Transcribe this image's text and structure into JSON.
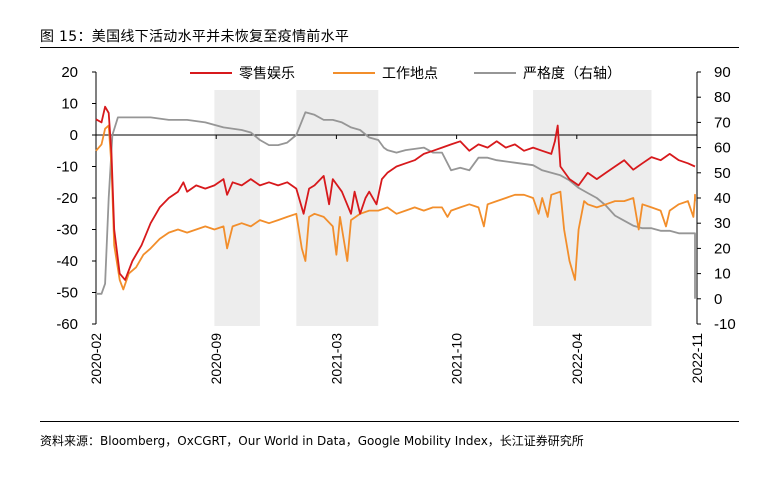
{
  "header": {
    "title": "图 15：美国线下活动水平并未恢复至疫情前水平"
  },
  "footer": {
    "source": "资料来源：Bloomberg，OxCGRT，Our World in Data，Google Mobility Index，长江证券研究所"
  },
  "chart_data": {
    "type": "line",
    "title": "图 15：美国线下活动水平并未恢复至疫情前水平",
    "y_left": {
      "ylim": [
        -60,
        20
      ],
      "ticks": [
        "20",
        "10",
        "0",
        "-10",
        "-20",
        "-30",
        "-40",
        "-50",
        "-60"
      ]
    },
    "y_right": {
      "ylim": [
        -10,
        90
      ],
      "ticks": [
        "90",
        "80",
        "70",
        "60",
        "50",
        "40",
        "30",
        "20",
        "10",
        "0",
        "-10"
      ]
    },
    "x_ticks": [
      "2020-02",
      "2020-09",
      "2021-03",
      "2021-10",
      "2022-04",
      "2022-11"
    ],
    "x_range": [
      0,
      33
    ],
    "shaded_periods": [
      [
        6.5,
        9.0
      ],
      [
        11.0,
        15.5
      ],
      [
        24.0,
        30.5
      ]
    ],
    "series": [
      {
        "name": "零售娱乐",
        "axis": "left",
        "color": "#d7191c",
        "points": [
          [
            0,
            5
          ],
          [
            0.3,
            4
          ],
          [
            0.5,
            9
          ],
          [
            0.7,
            7
          ],
          [
            0.85,
            -6
          ],
          [
            1.0,
            -30
          ],
          [
            1.3,
            -44
          ],
          [
            1.6,
            -46
          ],
          [
            2.0,
            -40
          ],
          [
            2.5,
            -35
          ],
          [
            3.0,
            -28
          ],
          [
            3.5,
            -23
          ],
          [
            4.0,
            -20
          ],
          [
            4.5,
            -18
          ],
          [
            4.8,
            -15
          ],
          [
            5.0,
            -18
          ],
          [
            5.5,
            -16
          ],
          [
            6.0,
            -17
          ],
          [
            6.5,
            -16
          ],
          [
            7.0,
            -14
          ],
          [
            7.2,
            -19
          ],
          [
            7.5,
            -15
          ],
          [
            8.0,
            -16
          ],
          [
            8.5,
            -14
          ],
          [
            9.0,
            -16
          ],
          [
            9.5,
            -15
          ],
          [
            10.0,
            -16
          ],
          [
            10.5,
            -15
          ],
          [
            11.0,
            -17
          ],
          [
            11.4,
            -25
          ],
          [
            11.7,
            -17
          ],
          [
            12.0,
            -16
          ],
          [
            12.5,
            -13
          ],
          [
            12.8,
            -22
          ],
          [
            13.0,
            -14
          ],
          [
            13.5,
            -18
          ],
          [
            14.0,
            -25
          ],
          [
            14.2,
            -18
          ],
          [
            14.5,
            -25
          ],
          [
            14.8,
            -20
          ],
          [
            15.0,
            -18
          ],
          [
            15.4,
            -22
          ],
          [
            15.7,
            -14
          ],
          [
            16.0,
            -12
          ],
          [
            16.5,
            -10
          ],
          [
            17.0,
            -9
          ],
          [
            17.5,
            -8
          ],
          [
            18.0,
            -6
          ],
          [
            18.5,
            -5
          ],
          [
            19.0,
            -4
          ],
          [
            19.5,
            -3
          ],
          [
            20.0,
            -2
          ],
          [
            20.5,
            -5
          ],
          [
            21.0,
            -3
          ],
          [
            21.5,
            -4
          ],
          [
            22.0,
            -2
          ],
          [
            22.5,
            -4
          ],
          [
            23.0,
            -3
          ],
          [
            23.5,
            -5
          ],
          [
            24.0,
            -4
          ],
          [
            24.5,
            -5
          ],
          [
            25.0,
            -6
          ],
          [
            25.2,
            -2
          ],
          [
            25.35,
            3
          ],
          [
            25.5,
            -10
          ],
          [
            26.0,
            -14
          ],
          [
            26.5,
            -16
          ],
          [
            27.0,
            -12
          ],
          [
            27.5,
            -14
          ],
          [
            28.0,
            -12
          ],
          [
            28.5,
            -10
          ],
          [
            29.0,
            -8
          ],
          [
            29.5,
            -11
          ],
          [
            30.0,
            -9
          ],
          [
            30.5,
            -7
          ],
          [
            31.0,
            -8
          ],
          [
            31.5,
            -6
          ],
          [
            32.0,
            -8
          ],
          [
            32.5,
            -9
          ],
          [
            33.0,
            -10
          ]
        ]
      },
      {
        "name": "工作地点",
        "axis": "left",
        "color": "#f28e2b",
        "points": [
          [
            0,
            -5
          ],
          [
            0.3,
            -3
          ],
          [
            0.5,
            2
          ],
          [
            0.7,
            3
          ],
          [
            0.85,
            -10
          ],
          [
            1.0,
            -35
          ],
          [
            1.3,
            -46
          ],
          [
            1.5,
            -49
          ],
          [
            1.8,
            -44
          ],
          [
            2.2,
            -42
          ],
          [
            2.6,
            -38
          ],
          [
            3.0,
            -36
          ],
          [
            3.5,
            -33
          ],
          [
            4.0,
            -31
          ],
          [
            4.5,
            -30
          ],
          [
            5.0,
            -31
          ],
          [
            5.5,
            -30
          ],
          [
            6.0,
            -29
          ],
          [
            6.5,
            -30
          ],
          [
            7.0,
            -29
          ],
          [
            7.2,
            -36
          ],
          [
            7.5,
            -29
          ],
          [
            8.0,
            -28
          ],
          [
            8.5,
            -29
          ],
          [
            9.0,
            -27
          ],
          [
            9.5,
            -28
          ],
          [
            10.0,
            -27
          ],
          [
            10.5,
            -26
          ],
          [
            11.0,
            -25
          ],
          [
            11.3,
            -36
          ],
          [
            11.5,
            -40
          ],
          [
            11.7,
            -26
          ],
          [
            12.0,
            -25
          ],
          [
            12.5,
            -26
          ],
          [
            13.0,
            -29
          ],
          [
            13.2,
            -38
          ],
          [
            13.4,
            -26
          ],
          [
            13.8,
            -40
          ],
          [
            14.0,
            -27
          ],
          [
            14.5,
            -25
          ],
          [
            15.0,
            -24
          ],
          [
            15.5,
            -24
          ],
          [
            16.0,
            -23
          ],
          [
            16.5,
            -25
          ],
          [
            17.0,
            -24
          ],
          [
            17.5,
            -23
          ],
          [
            18.0,
            -24
          ],
          [
            18.5,
            -23
          ],
          [
            19.0,
            -23
          ],
          [
            19.3,
            -26
          ],
          [
            19.5,
            -24
          ],
          [
            20.0,
            -23
          ],
          [
            20.5,
            -22
          ],
          [
            21.0,
            -23
          ],
          [
            21.3,
            -29
          ],
          [
            21.5,
            -22
          ],
          [
            22.0,
            -21
          ],
          [
            22.5,
            -20
          ],
          [
            23.0,
            -19
          ],
          [
            23.5,
            -19
          ],
          [
            24.0,
            -20
          ],
          [
            24.3,
            -25
          ],
          [
            24.5,
            -20
          ],
          [
            24.8,
            -26
          ],
          [
            25.0,
            -19
          ],
          [
            25.5,
            -18
          ],
          [
            25.7,
            -30
          ],
          [
            26.0,
            -40
          ],
          [
            26.3,
            -46
          ],
          [
            26.5,
            -30
          ],
          [
            26.8,
            -21
          ],
          [
            27.0,
            -22
          ],
          [
            27.5,
            -23
          ],
          [
            28.0,
            -22
          ],
          [
            28.5,
            -21
          ],
          [
            29.0,
            -21
          ],
          [
            29.5,
            -20
          ],
          [
            29.8,
            -30
          ],
          [
            30.0,
            -22
          ],
          [
            30.5,
            -23
          ],
          [
            31.0,
            -24
          ],
          [
            31.3,
            -29
          ],
          [
            31.5,
            -24
          ],
          [
            32.0,
            -22
          ],
          [
            32.5,
            -21
          ],
          [
            32.8,
            -26
          ],
          [
            33.0,
            -20
          ],
          [
            33.5,
            -19
          ],
          [
            34.0,
            -21
          ]
        ]
      },
      {
        "name": "严格度（右轴）",
        "axis": "right",
        "color": "#969696",
        "points": [
          [
            0,
            2
          ],
          [
            0.3,
            2
          ],
          [
            0.5,
            6
          ],
          [
            0.7,
            40
          ],
          [
            0.9,
            65
          ],
          [
            1.2,
            72
          ],
          [
            2.0,
            72
          ],
          [
            3.0,
            72
          ],
          [
            4.0,
            71
          ],
          [
            5.0,
            71
          ],
          [
            6.0,
            70
          ],
          [
            7.0,
            68
          ],
          [
            8.0,
            67
          ],
          [
            8.5,
            66
          ],
          [
            9.0,
            63
          ],
          [
            9.5,
            61
          ],
          [
            10.0,
            61
          ],
          [
            10.5,
            62
          ],
          [
            11.0,
            65
          ],
          [
            11.5,
            74
          ],
          [
            12.0,
            73
          ],
          [
            12.5,
            71
          ],
          [
            13.0,
            71
          ],
          [
            13.5,
            70
          ],
          [
            14.0,
            68
          ],
          [
            14.5,
            67
          ],
          [
            15.0,
            64
          ],
          [
            15.5,
            63
          ],
          [
            15.8,
            60
          ],
          [
            16.0,
            59
          ],
          [
            16.5,
            58
          ],
          [
            17.0,
            59
          ],
          [
            18.0,
            60
          ],
          [
            18.5,
            58
          ],
          [
            19.0,
            58
          ],
          [
            19.5,
            51
          ],
          [
            20.0,
            52
          ],
          [
            20.5,
            51
          ],
          [
            21.0,
            56
          ],
          [
            21.5,
            56
          ],
          [
            22.0,
            55
          ],
          [
            23.0,
            54
          ],
          [
            24.0,
            53
          ],
          [
            24.5,
            51
          ],
          [
            25.0,
            50
          ],
          [
            25.5,
            49
          ],
          [
            26.0,
            47
          ],
          [
            26.5,
            44
          ],
          [
            27.0,
            42
          ],
          [
            27.5,
            40
          ],
          [
            28.0,
            37
          ],
          [
            28.5,
            33
          ],
          [
            29.0,
            31
          ],
          [
            29.5,
            29
          ],
          [
            30.0,
            28
          ],
          [
            30.5,
            28
          ],
          [
            31.0,
            27
          ],
          [
            31.5,
            27
          ],
          [
            32.0,
            26
          ],
          [
            32.5,
            26
          ],
          [
            33.0,
            26
          ],
          [
            33.3,
            14
          ],
          [
            33.6,
            0
          ]
        ]
      }
    ]
  }
}
